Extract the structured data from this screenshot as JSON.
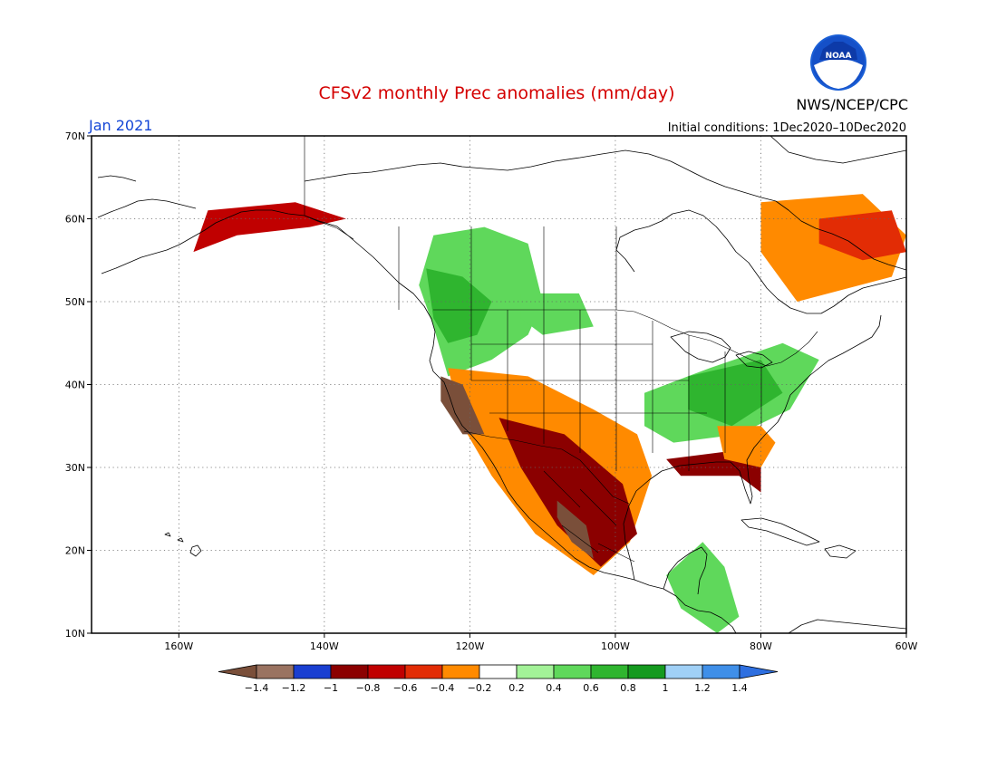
{
  "title": "CFSv2 monthly Prec anomalies (mm/day)",
  "period": "Jan 2021",
  "agency": "NWS/NCEP/CPC",
  "logo_text": "NOAA",
  "initial_conditions": "Initial conditions: 1Dec2020–10Dec2020",
  "map": {
    "lon_range": [
      -172,
      -60
    ],
    "lat_range": [
      10,
      70
    ],
    "lon_ticks": [
      {
        "value": -160,
        "label": "160W"
      },
      {
        "value": -140,
        "label": "140W"
      },
      {
        "value": -120,
        "label": "120W"
      },
      {
        "value": -100,
        "label": "100W"
      },
      {
        "value": -80,
        "label": "80W"
      },
      {
        "value": -60,
        "label": "60W"
      }
    ],
    "lat_ticks": [
      {
        "value": 10,
        "label": "10N"
      },
      {
        "value": 20,
        "label": "20N"
      },
      {
        "value": 30,
        "label": "30N"
      },
      {
        "value": 40,
        "label": "40N"
      },
      {
        "value": 50,
        "label": "50N"
      },
      {
        "value": 60,
        "label": "60N"
      },
      {
        "value": 70,
        "label": "70N"
      }
    ],
    "grid": true
  },
  "colorbar": {
    "colors": [
      "#7a4f3a",
      "#9a7361",
      "#1a3fd1",
      "#8b0000",
      "#c00000",
      "#e22c05",
      "#ff8a00",
      "#ffffff",
      "#a3f298",
      "#5fd85b",
      "#2fb52f",
      "#159a1f",
      "#a0d0f6",
      "#3f8fe8",
      "#2e6fe0"
    ],
    "tick_labels": [
      "−1.4",
      "−1.2",
      "−1",
      "−0.8",
      "−0.6",
      "−0.4",
      "−0.2",
      "0.2",
      "0.4",
      "0.6",
      "0.8",
      "1",
      "1.2",
      "1.4"
    ]
  },
  "anomaly_regions": [
    {
      "name": "pacific-northwest-wet",
      "value": 0.4,
      "lonlat": [
        [
          -125,
          58
        ],
        [
          -118,
          59
        ],
        [
          -112,
          57
        ],
        [
          -110,
          50
        ],
        [
          -112,
          46
        ],
        [
          -117,
          43
        ],
        [
          -123,
          41
        ],
        [
          -125,
          47
        ],
        [
          -127,
          52
        ]
      ]
    },
    {
      "name": "british-columbia-wet",
      "value": 0.7,
      "lonlat": [
        [
          -126,
          54
        ],
        [
          -121,
          53
        ],
        [
          -117,
          50
        ],
        [
          -119,
          46
        ],
        [
          -123,
          45
        ],
        [
          -125,
          48
        ]
      ]
    },
    {
      "name": "canadian-prairie-wet",
      "value": 0.4,
      "lonlat": [
        [
          -113,
          51
        ],
        [
          -105,
          51
        ],
        [
          -103,
          47
        ],
        [
          -110,
          46
        ],
        [
          -113,
          48
        ]
      ]
    },
    {
      "name": "ohio-valley-wet",
      "value": 0.4,
      "lonlat": [
        [
          -96,
          39
        ],
        [
          -87,
          42
        ],
        [
          -77,
          45
        ],
        [
          -72,
          43
        ],
        [
          -76,
          37
        ],
        [
          -83,
          34
        ],
        [
          -92,
          33
        ],
        [
          -96,
          35
        ]
      ]
    },
    {
      "name": "appalachian-wet",
      "value": 0.75,
      "lonlat": [
        [
          -90,
          41
        ],
        [
          -80,
          43
        ],
        [
          -77,
          39
        ],
        [
          -84,
          35
        ],
        [
          -90,
          37
        ]
      ]
    },
    {
      "name": "central-america-wet",
      "value": 0.5,
      "lonlat": [
        [
          -93,
          17
        ],
        [
          -88,
          21
        ],
        [
          -85,
          18
        ],
        [
          -83,
          12
        ],
        [
          -86,
          10
        ],
        [
          -91,
          13
        ]
      ]
    },
    {
      "name": "southwest-dry",
      "value": -0.4,
      "lonlat": [
        [
          -123,
          42
        ],
        [
          -112,
          41
        ],
        [
          -103,
          37
        ],
        [
          -97,
          34
        ],
        [
          -95,
          29
        ],
        [
          -98,
          21
        ],
        [
          -103,
          17
        ],
        [
          -111,
          22
        ],
        [
          -117,
          29
        ],
        [
          -121,
          35
        ]
      ]
    },
    {
      "name": "mexico-dry-core",
      "value": -0.9,
      "lonlat": [
        [
          -116,
          36
        ],
        [
          -107,
          34
        ],
        [
          -99,
          28
        ],
        [
          -97,
          22
        ],
        [
          -102,
          18
        ],
        [
          -108,
          23
        ],
        [
          -113,
          30
        ]
      ]
    },
    {
      "name": "california-coast-very-dry",
      "value": -1.5,
      "lonlat": [
        [
          -124,
          41
        ],
        [
          -121,
          40
        ],
        [
          -118,
          34
        ],
        [
          -121,
          34
        ],
        [
          -124,
          38
        ]
      ]
    },
    {
      "name": "sierra-madre-very-dry",
      "value": -1.5,
      "lonlat": [
        [
          -108,
          26
        ],
        [
          -104,
          23
        ],
        [
          -103,
          19
        ],
        [
          -106,
          21
        ],
        [
          -108,
          24
        ]
      ]
    },
    {
      "name": "gulf-coast-dry",
      "value": -0.9,
      "lonlat": [
        [
          -93,
          31
        ],
        [
          -84,
          32
        ],
        [
          -80,
          33
        ],
        [
          -80,
          27
        ],
        [
          -83,
          29
        ],
        [
          -91,
          29
        ]
      ]
    },
    {
      "name": "southeast-dry",
      "value": -0.4,
      "lonlat": [
        [
          -86,
          35
        ],
        [
          -80,
          35
        ],
        [
          -78,
          33
        ],
        [
          -80,
          30
        ],
        [
          -85,
          31
        ]
      ]
    },
    {
      "name": "quebec-labrador-dry",
      "value": -0.35,
      "lonlat": [
        [
          -80,
          62
        ],
        [
          -66,
          63
        ],
        [
          -60,
          58
        ],
        [
          -62,
          53
        ],
        [
          -75,
          50
        ],
        [
          -80,
          56
        ]
      ]
    },
    {
      "name": "labrador-sea-dry-core",
      "value": -0.6,
      "lonlat": [
        [
          -72,
          60
        ],
        [
          -62,
          61
        ],
        [
          -60,
          56
        ],
        [
          -66,
          55
        ],
        [
          -72,
          57
        ]
      ]
    },
    {
      "name": "southern-alaska-dry",
      "value": -0.8,
      "lonlat": [
        [
          -156,
          61
        ],
        [
          -144,
          62
        ],
        [
          -137,
          60
        ],
        [
          -142,
          59
        ],
        [
          -152,
          58
        ],
        [
          -158,
          56
        ]
      ]
    }
  ]
}
